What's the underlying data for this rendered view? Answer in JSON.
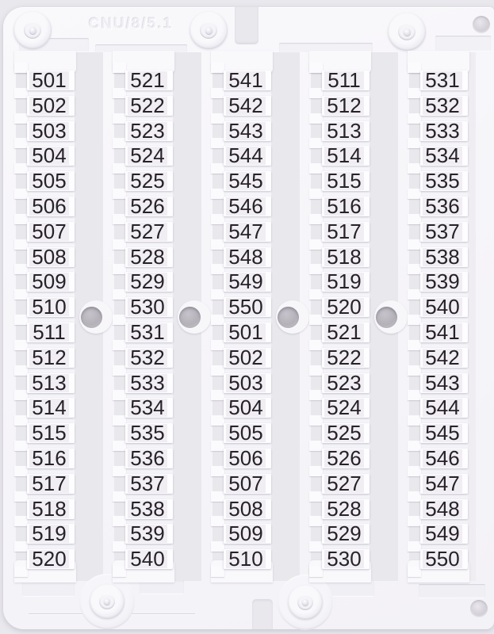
{
  "description": "Photo of a white plastic terminal-block marker card with five strips of snap-off numbered tags",
  "card": {
    "embossed_text": "CNU/8/5.1",
    "columns": [
      {
        "name": "column-1",
        "numbers": [
          "501",
          "502",
          "503",
          "504",
          "505",
          "506",
          "507",
          "508",
          "509",
          "510",
          "511",
          "512",
          "513",
          "514",
          "515",
          "516",
          "517",
          "518",
          "519",
          "520"
        ]
      },
      {
        "name": "column-2",
        "numbers": [
          "521",
          "522",
          "523",
          "524",
          "525",
          "526",
          "527",
          "528",
          "529",
          "530",
          "531",
          "532",
          "533",
          "534",
          "535",
          "536",
          "537",
          "538",
          "539",
          "540"
        ]
      },
      {
        "name": "column-3",
        "numbers": [
          "541",
          "542",
          "543",
          "544",
          "545",
          "546",
          "547",
          "548",
          "549",
          "550",
          "501",
          "502",
          "503",
          "504",
          "505",
          "506",
          "507",
          "508",
          "509",
          "510"
        ]
      },
      {
        "name": "column-4",
        "numbers": [
          "511",
          "512",
          "513",
          "514",
          "515",
          "516",
          "517",
          "518",
          "519",
          "520",
          "521",
          "522",
          "523",
          "524",
          "525",
          "526",
          "527",
          "528",
          "529",
          "530"
        ]
      },
      {
        "name": "column-5",
        "numbers": [
          "531",
          "532",
          "533",
          "534",
          "535",
          "536",
          "537",
          "538",
          "539",
          "540",
          "541",
          "542",
          "543",
          "544",
          "545",
          "546",
          "547",
          "548",
          "549",
          "550"
        ]
      }
    ]
  },
  "colors": {
    "page_background": "#e9e8ed",
    "card_plastic": "#f7f6f9",
    "tag_white": "#fdfcfe",
    "tag_label_gray": "#f0eef2",
    "number_text": "#272129",
    "hole_gray": "#b4b1b9"
  }
}
